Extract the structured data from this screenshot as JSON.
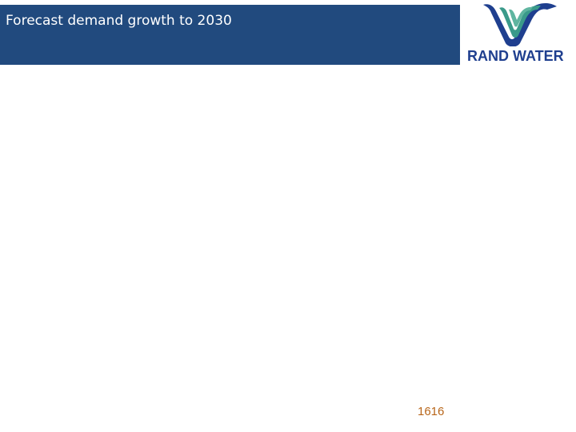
{
  "slide": {
    "title": "Forecast demand growth to 2030",
    "page_number": "1616"
  },
  "logo": {
    "text": "RAND WATER",
    "icon": "rand-water-wave-logo",
    "colors": {
      "wave_dark": "#1f3f8f",
      "wave_light": "#3a9a8a",
      "text": "#1f3f8f"
    }
  },
  "colors": {
    "title_bar": "#214a7e",
    "title_text": "#ffffff",
    "page_number": "#b8661a"
  }
}
